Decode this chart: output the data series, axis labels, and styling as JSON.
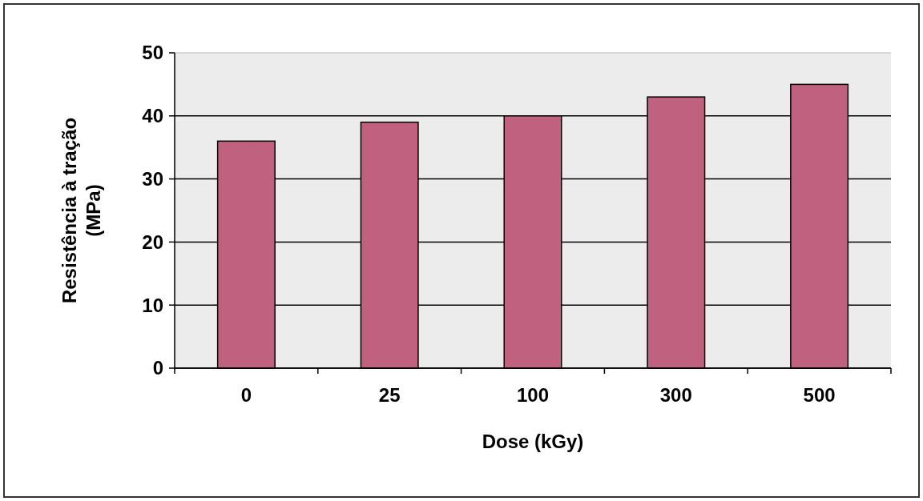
{
  "chart_data": {
    "type": "bar",
    "xlabel": "Dose (kGy)",
    "ylabel": "Resistência à tração\n(MPa)",
    "categories": [
      "0",
      "25",
      "100",
      "300",
      "500"
    ],
    "values": [
      36,
      39,
      40,
      43,
      45
    ],
    "color": "#c0627f",
    "ylim": [
      0,
      50
    ],
    "yticks": [
      0,
      10,
      20,
      30,
      40,
      50
    ],
    "grid": "y"
  }
}
